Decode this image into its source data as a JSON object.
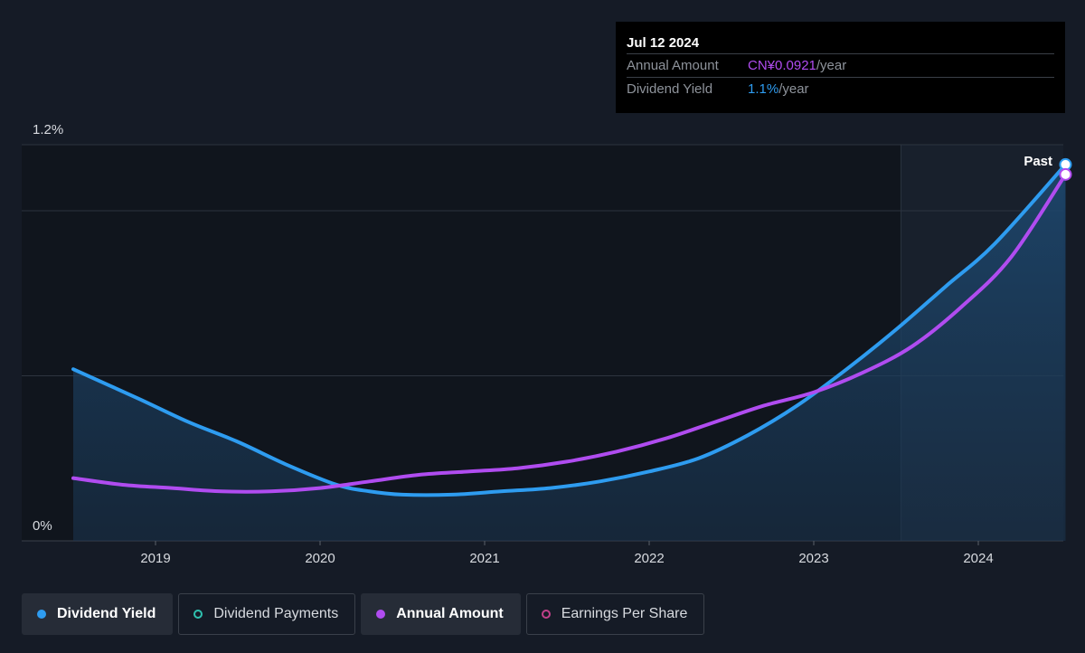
{
  "tooltip": {
    "date": "Jul 12 2024",
    "rows": [
      {
        "label": "Annual Amount",
        "value": "CN¥0.0921",
        "unit": "/year"
      },
      {
        "label": "Dividend Yield",
        "value": "1.1%",
        "unit": "/year"
      }
    ]
  },
  "legend": [
    {
      "label": "Dividend Yield",
      "active": true,
      "color": "#2e9cf0"
    },
    {
      "label": "Dividend Payments",
      "active": false,
      "color": "#2fc2b0"
    },
    {
      "label": "Annual Amount",
      "active": true,
      "color": "#b04cf0"
    },
    {
      "label": "Earnings Per Share",
      "active": false,
      "color": "#c2408a"
    }
  ],
  "chart_data": {
    "type": "line",
    "x_ticks": [
      "2019",
      "2020",
      "2021",
      "2022",
      "2023",
      "2024"
    ],
    "y_ticks": [
      "1.2%",
      "0%"
    ],
    "ylim": [
      0,
      1.2
    ],
    "past_label": "Past",
    "series": [
      {
        "name": "Dividend Yield",
        "color": "#2e9cf0",
        "x": [
          2018.5,
          2018.9,
          2019.2,
          2019.5,
          2019.8,
          2020.1,
          2020.3,
          2020.5,
          2020.8,
          2021.1,
          2021.4,
          2021.7,
          2022.0,
          2022.3,
          2022.6,
          2022.9,
          2023.2,
          2023.5,
          2023.8,
          2024.1,
          2024.53
        ],
        "y": [
          0.52,
          0.43,
          0.36,
          0.3,
          0.23,
          0.17,
          0.15,
          0.14,
          0.14,
          0.15,
          0.16,
          0.18,
          0.21,
          0.25,
          0.32,
          0.41,
          0.52,
          0.64,
          0.77,
          0.9,
          1.14
        ]
      },
      {
        "name": "Annual Amount",
        "color": "#b04cf0",
        "x": [
          2018.5,
          2018.8,
          2019.1,
          2019.4,
          2019.7,
          2020.0,
          2020.3,
          2020.6,
          2020.9,
          2021.2,
          2021.5,
          2021.8,
          2022.1,
          2022.4,
          2022.7,
          2023.0,
          2023.3,
          2023.6,
          2023.9,
          2024.2,
          2024.53
        ],
        "y": [
          0.19,
          0.17,
          0.16,
          0.15,
          0.15,
          0.16,
          0.18,
          0.2,
          0.21,
          0.22,
          0.24,
          0.27,
          0.31,
          0.36,
          0.41,
          0.45,
          0.51,
          0.59,
          0.71,
          0.86,
          1.11
        ]
      }
    ],
    "forecast_start": 2023.53
  }
}
